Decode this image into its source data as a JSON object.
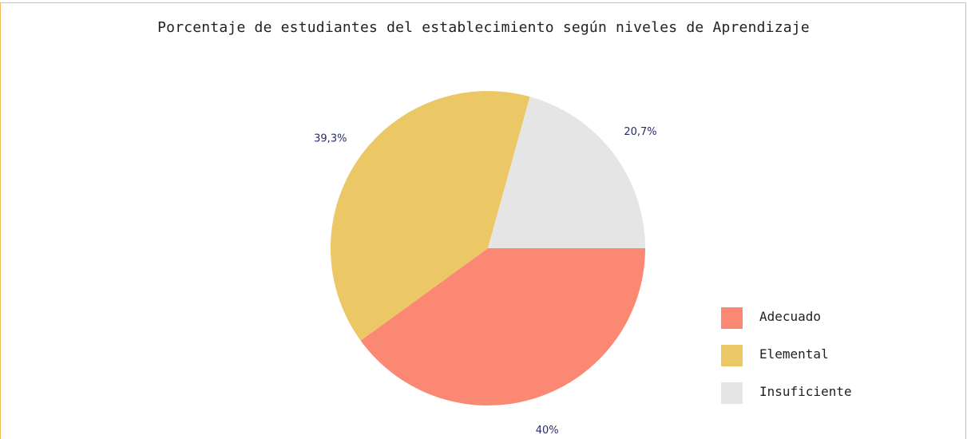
{
  "chart_data": {
    "type": "pie",
    "title": "Porcentaje de estudiantes del establecimiento según niveles de Aprendizaje",
    "slices": [
      {
        "name": "Adecuado",
        "value": 40.0,
        "label": "40%",
        "color": "#fa8872"
      },
      {
        "name": "Elemental",
        "value": 39.3,
        "label": "39,3%",
        "color": "#ecc766"
      },
      {
        "name": "Insuficiente",
        "value": 20.7,
        "label": "20,7%",
        "color": "#e5e5e5"
      }
    ],
    "legend": {
      "placement": "bottom-right"
    }
  },
  "colors": {
    "frame_border": "#f4b860",
    "label_text": "#2a2a6a"
  }
}
